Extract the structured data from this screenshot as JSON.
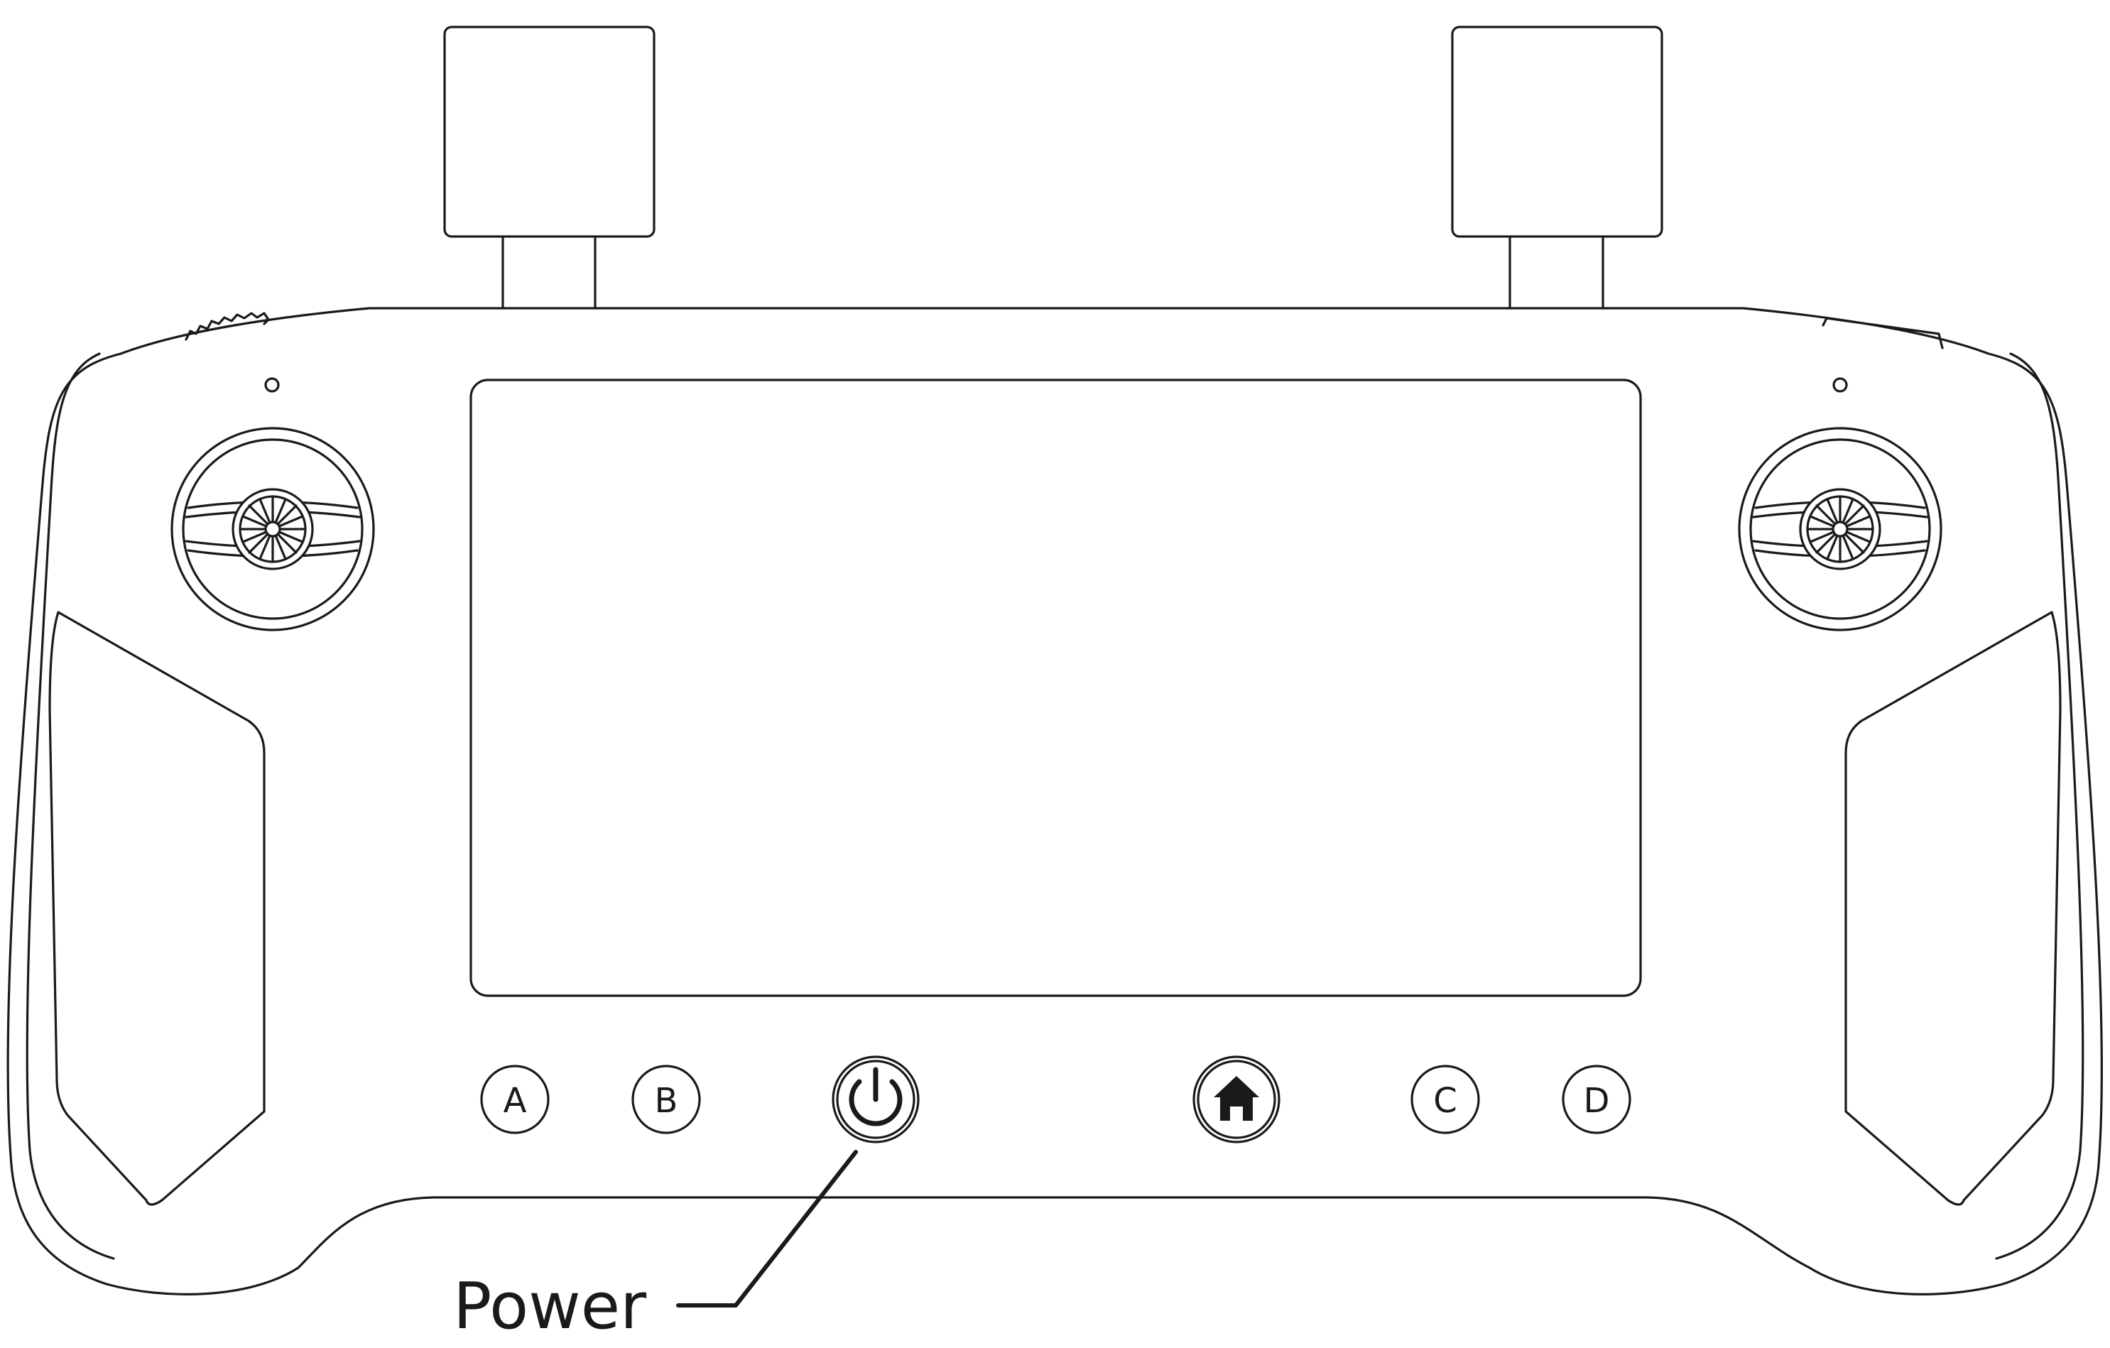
{
  "device": {
    "buttons": {
      "a_label": "A",
      "b_label": "B",
      "c_label": "C",
      "d_label": "D"
    },
    "icons": {
      "power": "power-icon",
      "home": "home-icon"
    },
    "callouts": {
      "power_label": "Power"
    },
    "colors": {
      "line": "#1a1a1a",
      "background": "#ffffff"
    }
  }
}
